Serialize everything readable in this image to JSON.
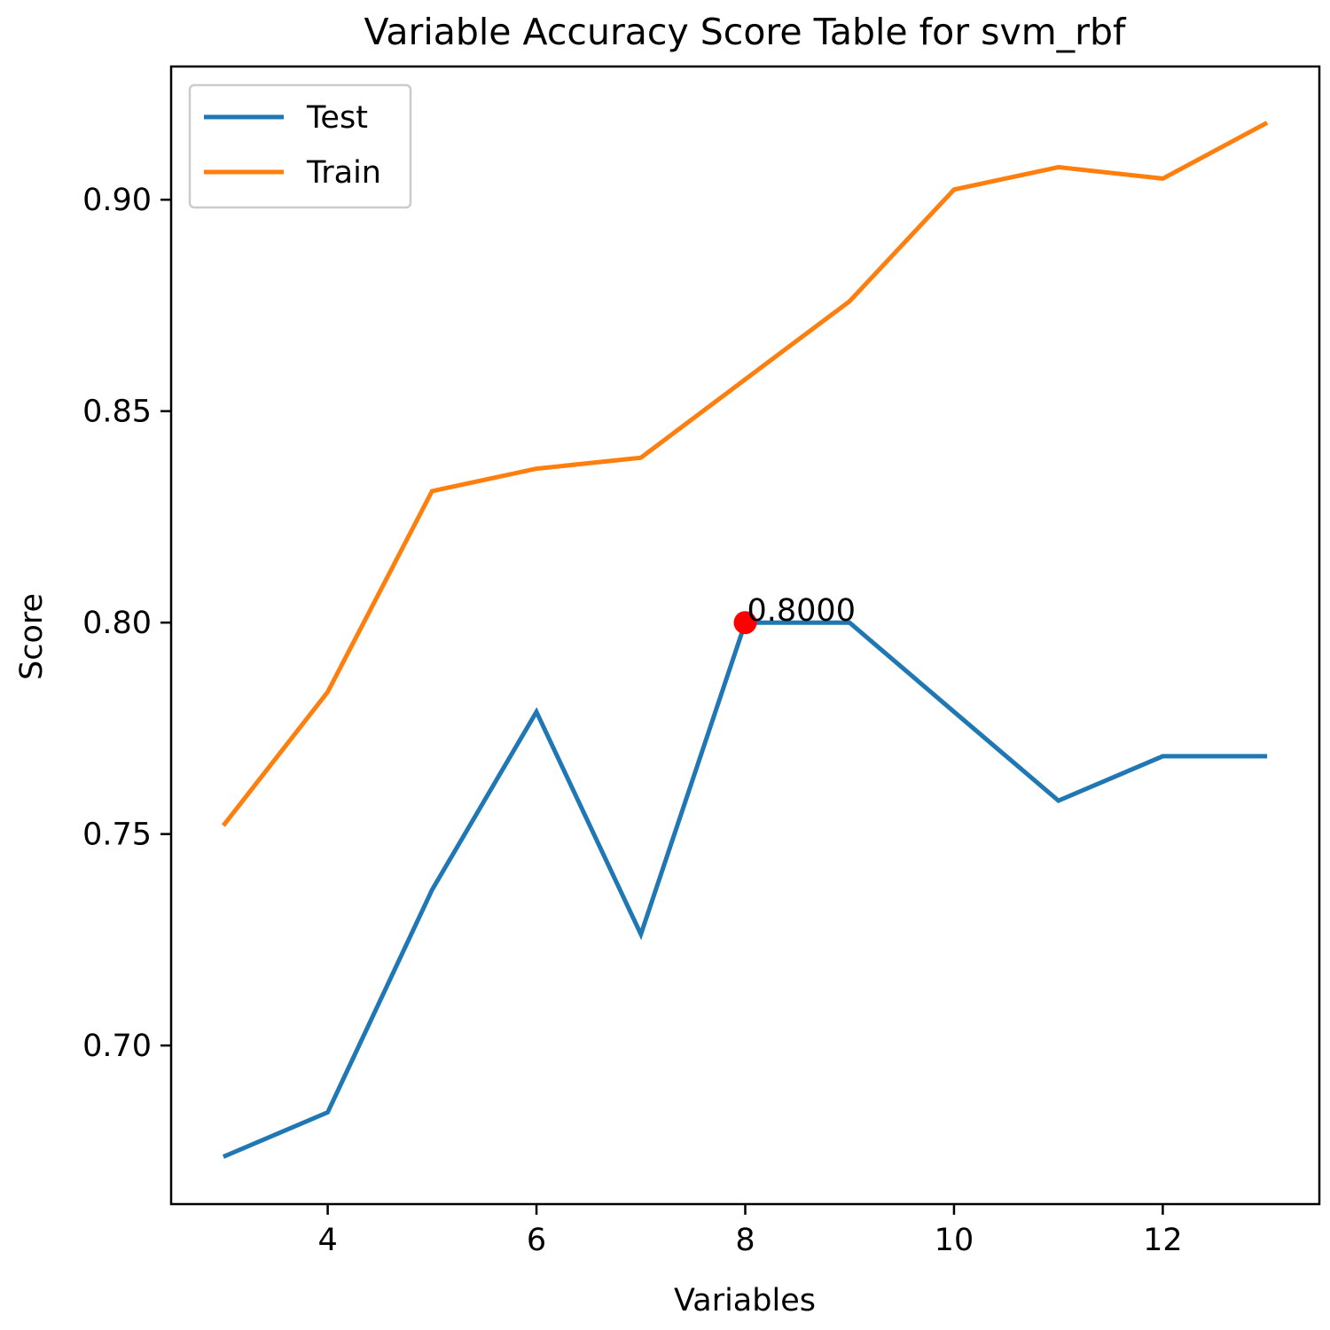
{
  "chart_data": {
    "type": "line",
    "title": "Variable Accuracy Score Table for svm_rbf",
    "xlabel": "Variables",
    "ylabel": "Score",
    "xlim": [
      2.5,
      13.5
    ],
    "ylim": [
      0.6625,
      0.9315
    ],
    "xticks": [
      4,
      6,
      8,
      10,
      12
    ],
    "yticks": [
      0.7,
      0.75,
      0.8,
      0.85,
      0.9
    ],
    "xtick_labels": [
      "4",
      "6",
      "8",
      "10",
      "12"
    ],
    "ytick_labels": [
      "0.70",
      "0.75",
      "0.80",
      "0.85",
      "0.90"
    ],
    "grid": false,
    "legend_position": "upper-left",
    "x": [
      3,
      4,
      5,
      6,
      7,
      8,
      9,
      10,
      11,
      12,
      13
    ],
    "series": [
      {
        "name": "Test",
        "color": "#1f77b4",
        "values": [
          0.6737,
          0.6842,
          0.7368,
          0.7789,
          0.7263,
          0.8,
          0.8,
          0.7789,
          0.7579,
          0.7684,
          0.7684
        ]
      },
      {
        "name": "Train",
        "color": "#ff7f0e",
        "values": [
          0.752,
          0.7836,
          0.8311,
          0.8364,
          0.839,
          0.8575,
          0.876,
          0.9024,
          0.9077,
          0.905,
          0.9182
        ]
      }
    ],
    "highlight": {
      "x": 8,
      "y": 0.8,
      "label": "0.8000",
      "color": "#ff0000"
    }
  }
}
